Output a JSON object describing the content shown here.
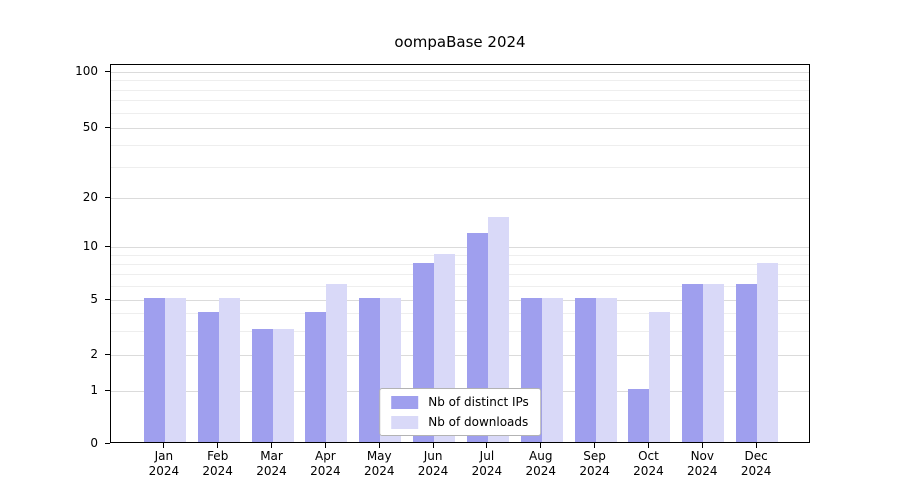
{
  "chart_data": {
    "type": "bar",
    "title": "oompaBase 2024",
    "x_tick_year": "2024",
    "categories": [
      "Jan",
      "Feb",
      "Mar",
      "Apr",
      "May",
      "Jun",
      "Jul",
      "Aug",
      "Sep",
      "Oct",
      "Nov",
      "Dec"
    ],
    "series": [
      {
        "name": "Nb of distinct IPs",
        "color": "#9f9fee",
        "values": [
          5,
          4,
          3,
          4,
          5,
          8,
          12,
          5,
          5,
          1,
          6,
          6
        ]
      },
      {
        "name": "Nb of downloads",
        "color": "#d9d9f8",
        "values": [
          5,
          5,
          3,
          6,
          5,
          9,
          15,
          5,
          5,
          4,
          6,
          8
        ]
      }
    ],
    "y_ticks": [
      0,
      1,
      2,
      5,
      10,
      20,
      50,
      100
    ],
    "y_minor_ticks": [
      3,
      4,
      6,
      7,
      8,
      9,
      30,
      40,
      60,
      70,
      80,
      90
    ],
    "y_scale": "symlog (linear 0-1, logarithmic above)",
    "ylim": [
      0,
      110
    ],
    "grid": "horizontal",
    "legend": {
      "position": "bottom-center"
    }
  }
}
